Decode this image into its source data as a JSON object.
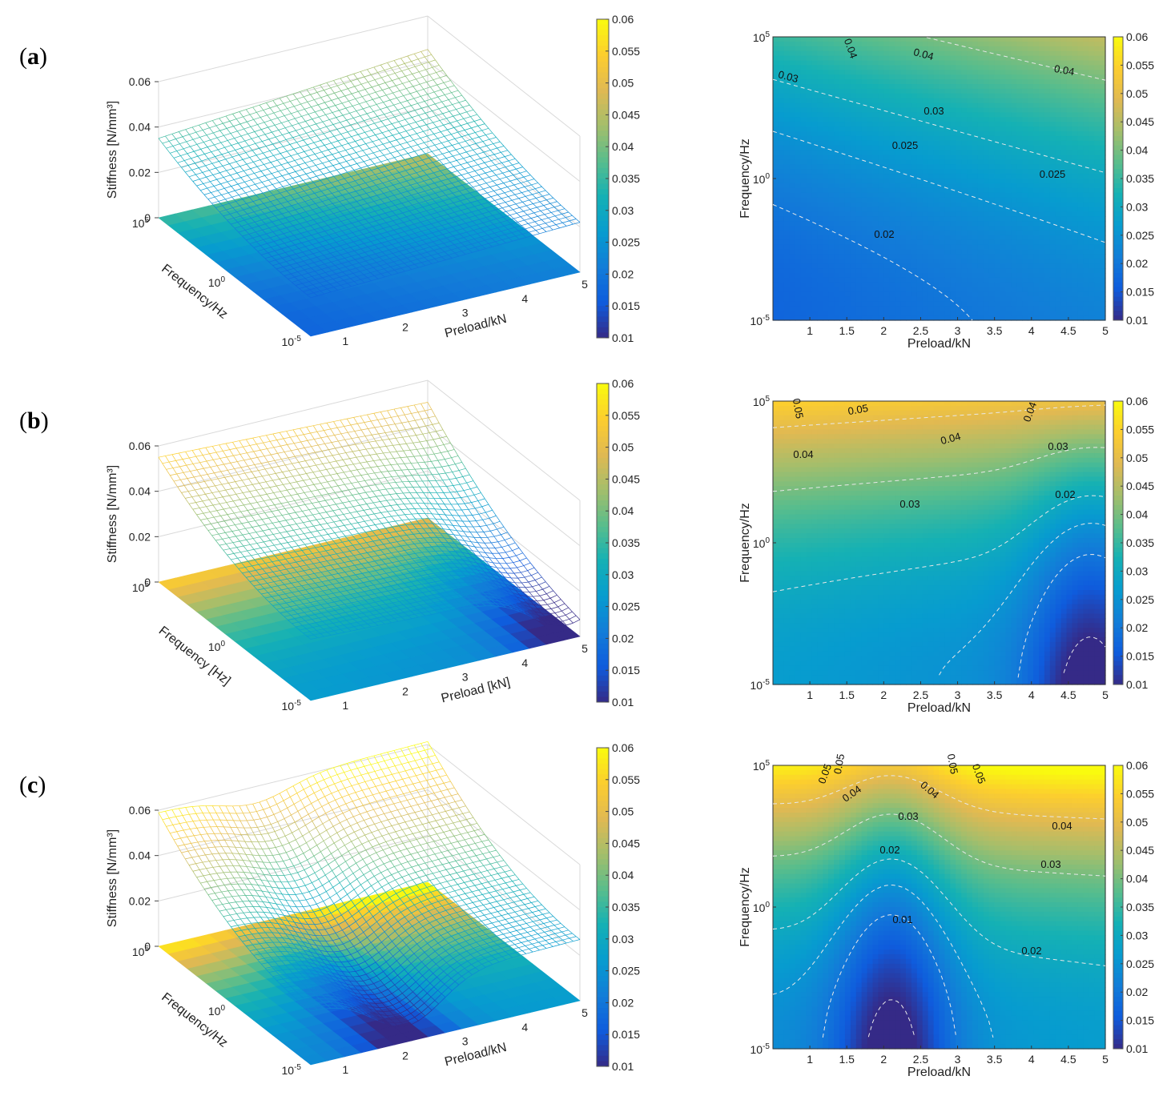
{
  "chart_data": [
    {
      "id": "a",
      "panel_label": "a",
      "surface": {
        "type": "surface3d",
        "zlabel": "Stiffness [N/mm³]",
        "ylabel": "Frequency/Hz",
        "xlabel": "Preload/kN",
        "zticks": [
          "0",
          "0.02",
          "0.04",
          "0.06"
        ],
        "xticks": [
          "1",
          "2",
          "3",
          "4",
          "5"
        ],
        "yticks": [
          {
            "base": "10",
            "exp": "-5"
          },
          {
            "base": "10",
            "exp": "0"
          },
          {
            "base": "10",
            "exp": "5"
          }
        ],
        "zlim": [
          0,
          0.06
        ],
        "xlim": [
          0.5,
          5
        ],
        "ylog10_range": [
          -5,
          5
        ],
        "corner_values": {
          "preload_low_freq_low": 0.018,
          "preload_low_freq_high": 0.036,
          "preload_high_freq_low": 0.026,
          "preload_high_freq_high": 0.047
        }
      },
      "contour": {
        "type": "contour",
        "xlabel": "Preload/kN",
        "ylabel": "Frequency/Hz",
        "xticks": [
          "1",
          "1.5",
          "2",
          "2.5",
          "3",
          "3.5",
          "4",
          "4.5",
          "5"
        ],
        "yticks": [
          {
            "base": "10",
            "exp": "-5"
          },
          {
            "base": "10",
            "exp": "0"
          },
          {
            "base": "10",
            "exp": "5"
          }
        ],
        "xlim": [
          0.5,
          5
        ],
        "ylog10_range": [
          -5,
          5
        ],
        "contour_labels": [
          "0.04",
          "0.04",
          "0.04",
          "0.03",
          "0.03",
          "0.025",
          "0.025",
          "0.02"
        ]
      },
      "colorbar": {
        "ticks": [
          "0.01",
          "0.015",
          "0.02",
          "0.025",
          "0.03",
          "0.035",
          "0.04",
          "0.045",
          "0.05",
          "0.055",
          "0.06"
        ],
        "range": [
          0.01,
          0.06
        ]
      }
    },
    {
      "id": "b",
      "panel_label": "b",
      "surface": {
        "type": "surface3d",
        "zlabel": "Stiffness [N/mm³]",
        "ylabel": "Frequency [Hz]",
        "xlabel": "Preload [kN]",
        "zticks": [
          "0",
          "0.02",
          "0.04",
          "0.06"
        ],
        "xticks": [
          "1",
          "2",
          "3",
          "4",
          "5"
        ],
        "yticks": [
          {
            "base": "10",
            "exp": "-5"
          },
          {
            "base": "10",
            "exp": "0"
          },
          {
            "base": "10",
            "exp": "5"
          }
        ],
        "zlim": [
          0,
          0.06
        ],
        "xlim": [
          0.5,
          5
        ],
        "ylog10_range": [
          -5,
          5
        ],
        "corner_values": {
          "preload_low_freq_low": 0.025,
          "preload_low_freq_high": 0.052,
          "preload_high_freq_low": 0.011,
          "preload_high_freq_high": 0.036
        }
      },
      "contour": {
        "type": "contour",
        "xlabel": "Preload/kN",
        "ylabel": "Frequency/Hz",
        "xticks": [
          "1",
          "1.5",
          "2",
          "2.5",
          "3",
          "3.5",
          "4",
          "4.5",
          "5"
        ],
        "yticks": [
          {
            "base": "10",
            "exp": "-5"
          },
          {
            "base": "10",
            "exp": "0"
          },
          {
            "base": "10",
            "exp": "5"
          }
        ],
        "xlim": [
          0.5,
          5
        ],
        "ylog10_range": [
          -5,
          5
        ],
        "contour_labels": [
          "0.05",
          "0.05",
          "0.04",
          "0.04",
          "0.04",
          "0.03",
          "0.03",
          "0.02"
        ]
      },
      "colorbar": {
        "ticks": [
          "0.01",
          "0.015",
          "0.02",
          "0.025",
          "0.03",
          "0.035",
          "0.04",
          "0.045",
          "0.05",
          "0.055",
          "0.06"
        ],
        "range": [
          0.01,
          0.06
        ]
      }
    },
    {
      "id": "c",
      "panel_label": "c",
      "surface": {
        "type": "surface3d",
        "zlabel": "Stiffness [N/mm³]",
        "ylabel": "Frequency/Hz",
        "xlabel": "Preload/kN",
        "zticks": [
          "0",
          "0.02",
          "0.04",
          "0.06"
        ],
        "xticks": [
          "1",
          "2",
          "3",
          "4",
          "5"
        ],
        "yticks": [
          {
            "base": "10",
            "exp": "-5"
          },
          {
            "base": "10",
            "exp": "0"
          },
          {
            "base": "10",
            "exp": "5"
          }
        ],
        "zlim": [
          0,
          0.06
        ],
        "xlim": [
          0.5,
          5
        ],
        "ylog10_range": [
          -5,
          5
        ],
        "corner_values": {
          "preload_low_freq_low": 0.022,
          "preload_low_freq_high": 0.06,
          "preload_high_freq_low": 0.02,
          "preload_high_freq_high": 0.058,
          "minimum": 0.008
        }
      },
      "contour": {
        "type": "contour",
        "xlabel": "Preload/kN",
        "ylabel": "Frequency/Hz",
        "xticks": [
          "1",
          "1.5",
          "2",
          "2.5",
          "3",
          "3.5",
          "4",
          "4.5",
          "5"
        ],
        "yticks": [
          {
            "base": "10",
            "exp": "-5"
          },
          {
            "base": "10",
            "exp": "0"
          },
          {
            "base": "10",
            "exp": "5"
          }
        ],
        "xlim": [
          0.5,
          5
        ],
        "ylog10_range": [
          -5,
          5
        ],
        "contour_labels": [
          "0.05",
          "0.05",
          "0.05",
          "0.05",
          "0.04",
          "0.04",
          "0.04",
          "0.03",
          "0.03",
          "0.02",
          "0.02",
          "0.01"
        ]
      },
      "colorbar": {
        "ticks": [
          "0.01",
          "0.015",
          "0.02",
          "0.025",
          "0.03",
          "0.035",
          "0.04",
          "0.045",
          "0.05",
          "0.055",
          "0.06"
        ],
        "range": [
          0.01,
          0.06
        ]
      }
    }
  ]
}
